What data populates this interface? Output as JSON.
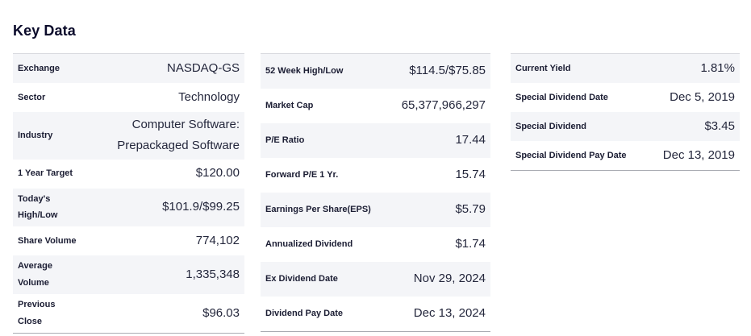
{
  "page": {
    "title": "Key Data"
  },
  "colors": {
    "title_text": "#0b0b2b",
    "label_text": "#1b1d33",
    "value_text": "#24273c",
    "shaded_row_bg": "#f4f5f8",
    "table_top_border": "#d9dadf",
    "table_bottom_border": "#a9abb2",
    "page_bg": "#ffffff"
  },
  "columns": [
    {
      "rows": [
        {
          "label": "Exchange",
          "value": "NASDAQ-GS"
        },
        {
          "label": "Sector",
          "value": "Technology"
        },
        {
          "label": "Industry",
          "value": "Computer Software:\nPrepackaged Software"
        },
        {
          "label": "1 Year Target",
          "value": "$120.00"
        },
        {
          "label": "Today's\nHigh/Low",
          "value": "$101.9/$99.25"
        },
        {
          "label": "Share Volume",
          "value": "774,102"
        },
        {
          "label": "Average\nVolume",
          "value": "1,335,348"
        },
        {
          "label": "Previous\nClose",
          "value": "$96.03"
        }
      ]
    },
    {
      "rows": [
        {
          "label": "52 Week High/Low",
          "value": "$114.5/$75.85"
        },
        {
          "label": "Market Cap",
          "value": "65,377,966,297"
        },
        {
          "label": "P/E Ratio",
          "value": "17.44"
        },
        {
          "label": "Forward P/E 1 Yr.",
          "value": "15.74"
        },
        {
          "label": "Earnings Per Share(EPS)",
          "value": "$5.79"
        },
        {
          "label": "Annualized Dividend",
          "value": "$1.74"
        },
        {
          "label": "Ex Dividend Date",
          "value": "Nov 29, 2024"
        },
        {
          "label": "Dividend Pay Date",
          "value": "Dec 13, 2024"
        }
      ]
    },
    {
      "rows": [
        {
          "label": "Current Yield",
          "value": "1.81%"
        },
        {
          "label": "Special Dividend Date",
          "value": "Dec 5, 2019"
        },
        {
          "label": "Special Dividend",
          "value": "$3.45"
        },
        {
          "label": "Special Dividend Pay Date",
          "value": "Dec 13, 2019"
        }
      ]
    }
  ]
}
